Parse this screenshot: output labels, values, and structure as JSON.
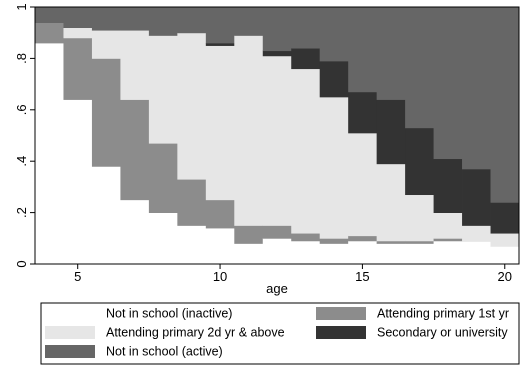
{
  "chart_data": {
    "type": "area",
    "stacked": true,
    "step": true,
    "xlabel": "age",
    "ylabel": "",
    "xlim": [
      3.5,
      20.5
    ],
    "ylim": [
      0,
      1
    ],
    "x_ticks": [
      5,
      10,
      15,
      20
    ],
    "y_ticks": [
      {
        "value": 0,
        "label": "0"
      },
      {
        "value": 0.2,
        "label": ".2"
      },
      {
        "value": 0.4,
        "label": ".4"
      },
      {
        "value": 0.6,
        "label": ".6"
      },
      {
        "value": 0.8,
        "label": ".8"
      },
      {
        "value": 1,
        "label": "1"
      }
    ],
    "grid": false,
    "legend_position": "bottom",
    "x": [
      4,
      5,
      6,
      7,
      8,
      9,
      10,
      11,
      12,
      13,
      14,
      15,
      16,
      17,
      18,
      19,
      20
    ],
    "series": [
      {
        "name": "Not in school (inactive)",
        "color": "#ffffff",
        "values": [
          0.86,
          0.64,
          0.38,
          0.25,
          0.2,
          0.15,
          0.14,
          0.08,
          0.1,
          0.09,
          0.08,
          0.09,
          0.08,
          0.08,
          0.09,
          0.09,
          0.07
        ]
      },
      {
        "name": "Attending primary 1st yr",
        "color": "#8c8c8c",
        "values": [
          0.08,
          0.24,
          0.42,
          0.39,
          0.27,
          0.18,
          0.11,
          0.07,
          0.05,
          0.03,
          0.02,
          0.02,
          0.01,
          0.01,
          0.01,
          0.0,
          0.0
        ]
      },
      {
        "name": "Attending primary 2d yr & above",
        "color": "#e6e6e6",
        "values": [
          0.0,
          0.04,
          0.11,
          0.27,
          0.42,
          0.57,
          0.6,
          0.74,
          0.66,
          0.64,
          0.55,
          0.4,
          0.3,
          0.18,
          0.1,
          0.06,
          0.05
        ]
      },
      {
        "name": "Secondary or university",
        "color": "#333333",
        "values": [
          0.0,
          0.0,
          0.0,
          0.0,
          0.0,
          0.0,
          0.01,
          0.0,
          0.02,
          0.08,
          0.14,
          0.16,
          0.25,
          0.26,
          0.21,
          0.22,
          0.12
        ]
      },
      {
        "name": "Not in school (active)",
        "color": "#666666",
        "values": [
          0.06,
          0.08,
          0.09,
          0.09,
          0.11,
          0.1,
          0.14,
          0.11,
          0.17,
          0.16,
          0.21,
          0.33,
          0.36,
          0.47,
          0.59,
          0.63,
          0.76
        ]
      }
    ],
    "legend_layout": [
      {
        "series": 0,
        "row": 0,
        "col": 0
      },
      {
        "series": 1,
        "row": 0,
        "col": 1
      },
      {
        "series": 2,
        "row": 1,
        "col": 0
      },
      {
        "series": 3,
        "row": 1,
        "col": 1
      },
      {
        "series": 4,
        "row": 2,
        "col": 0
      }
    ]
  }
}
